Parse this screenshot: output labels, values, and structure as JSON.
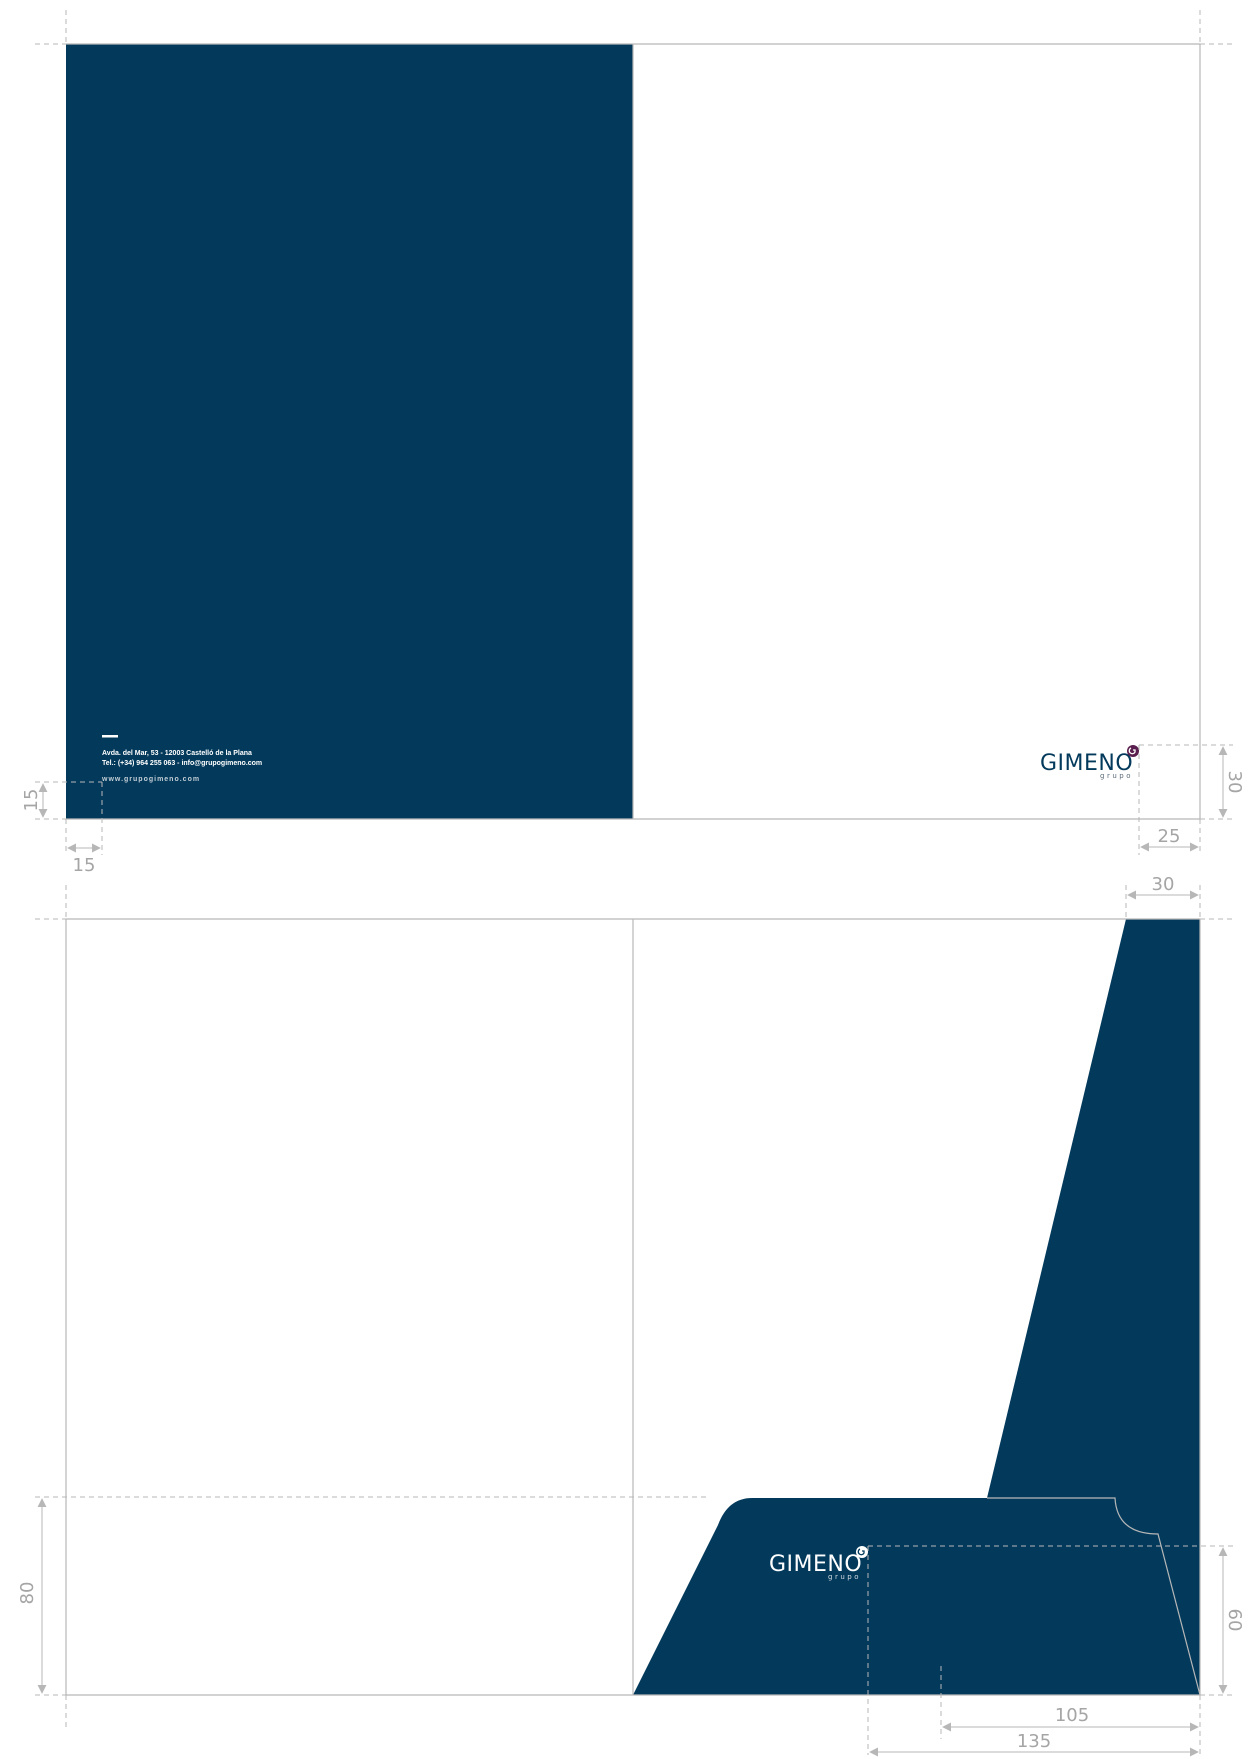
{
  "colors": {
    "brand_navy": "#033a5c",
    "logo_purple": "#5a1f4e",
    "dimension_gray": "#b7b7b7",
    "white": "#ffffff"
  },
  "outer_cover": {
    "contact": {
      "address": "Avda. del Mar, 53 - 12003 Castelló de la Plana",
      "phone_email": "Tel.: (+34) 964 255 063 - info@grupogimeno.com",
      "website": "www.grupogimeno.com"
    },
    "logo": {
      "icon": "gimeno-g-icon",
      "word": "GIMENO",
      "sub": "grupo"
    }
  },
  "inner_pocket": {
    "logo": {
      "icon": "gimeno-g-icon",
      "word": "GIMENO",
      "sub": "grupo"
    }
  },
  "dimensions": {
    "margin_left_vertical": "15",
    "margin_left_horizontal": "15",
    "logo_right_offset": "25",
    "logo_bottom_offset": "30",
    "flap_top_width": "30",
    "pocket_height": "80",
    "logo_pocket_height": "60",
    "pocket_width_105": "105",
    "pocket_width_135": "135"
  }
}
